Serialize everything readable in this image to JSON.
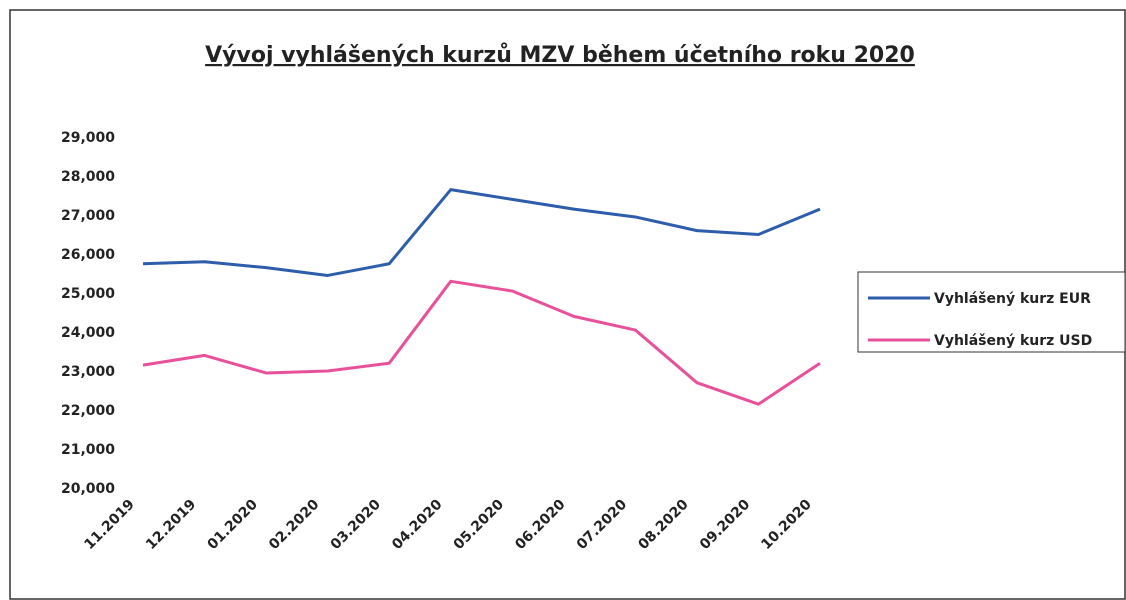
{
  "chart_data": {
    "type": "line",
    "title": "Vývoj vyhlášených kurzů MZV během účetního roku 2020",
    "categories": [
      "11.2019",
      "12.2019",
      "01.2020",
      "02.2020",
      "03.2020",
      "04.2020",
      "05.2020",
      "06.2020",
      "07.2020",
      "08.2020",
      "09.2020",
      "10.2020"
    ],
    "series": [
      {
        "name": "Vyhlášený kurz EUR",
        "color": "#2e5dab",
        "values": [
          25.75,
          25.8,
          25.65,
          25.45,
          25.75,
          27.65,
          27.4,
          27.15,
          26.95,
          26.6,
          26.5,
          27.15
        ]
      },
      {
        "name": "Vyhlášený kurz USD",
        "color": "#e8519a",
        "values": [
          23.15,
          23.4,
          22.95,
          23.0,
          23.2,
          25.3,
          25.05,
          24.4,
          24.05,
          22.7,
          22.15,
          23.2
        ]
      }
    ],
    "ylim": [
      20,
      29
    ],
    "yticks": [
      {
        "value": 20,
        "label": "20,000"
      },
      {
        "value": 21,
        "label": "21,000"
      },
      {
        "value": 22,
        "label": "22,000"
      },
      {
        "value": 23,
        "label": "23,000"
      },
      {
        "value": 24,
        "label": "24,000"
      },
      {
        "value": 25,
        "label": "25,000"
      },
      {
        "value": 26,
        "label": "26,000"
      },
      {
        "value": 27,
        "label": "27,000"
      },
      {
        "value": 28,
        "label": "28,000"
      },
      {
        "value": 29,
        "label": "29,000"
      }
    ],
    "grid": false,
    "legend": "right"
  }
}
